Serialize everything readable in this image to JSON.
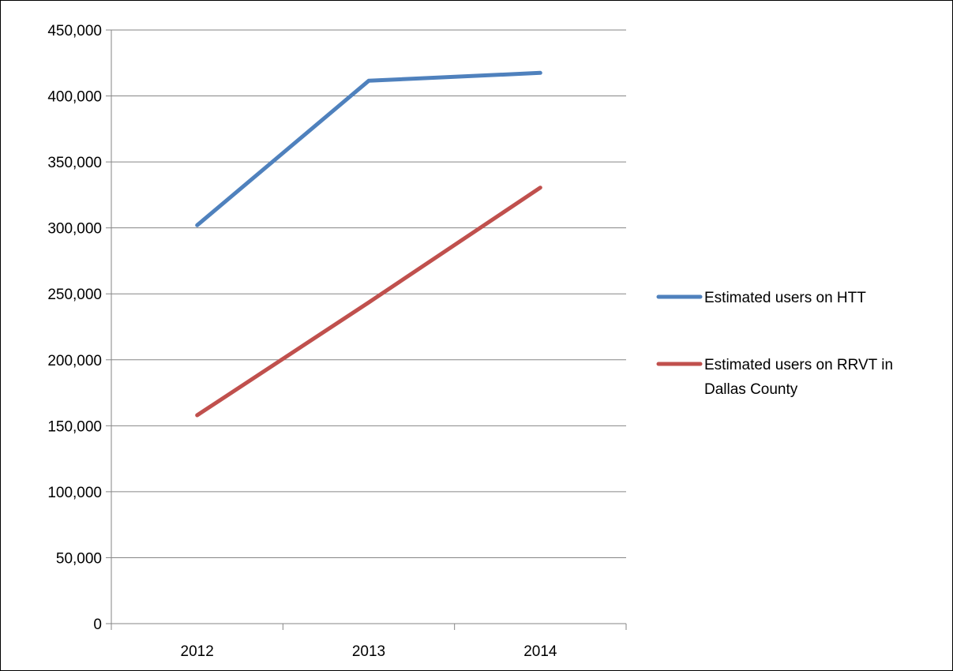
{
  "chart_data": {
    "type": "line",
    "title": "",
    "xlabel": "",
    "ylabel": "",
    "categories": [
      "2012",
      "2013",
      "2014"
    ],
    "ylim": [
      0,
      450000
    ],
    "ytick_step": 50000,
    "ytick_labels": [
      "0",
      "50,000",
      "100,000",
      "150,000",
      "200,000",
      "250,000",
      "300,000",
      "350,000",
      "400,000",
      "450,000"
    ],
    "grid": true,
    "legend_position": "right",
    "series": [
      {
        "name": "Estimated users on HTT",
        "legend_lines": [
          "Estimated users on HTT"
        ],
        "color": "#4f81bd",
        "values": [
          302000,
          411500,
          417500
        ]
      },
      {
        "name": "Estimated users on RRVT in Dallas County",
        "legend_lines": [
          "Estimated users on RRVT in",
          "Dallas County"
        ],
        "color": "#c0504d",
        "values": [
          158000,
          243500,
          330500
        ]
      }
    ]
  }
}
